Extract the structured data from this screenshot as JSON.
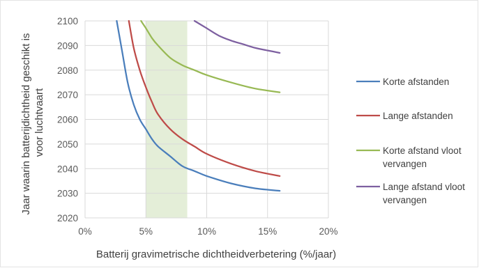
{
  "chart_data": {
    "type": "line",
    "xlabel": "Batterij gravimetrische dichtheidverbetering (%/jaar)",
    "ylabel_lines": [
      "Jaar waarin batterijdichtheid geschikt is",
      "voor luchtvaart"
    ],
    "xlim": [
      0,
      0.2
    ],
    "ylim": [
      2020,
      2100
    ],
    "x_ticks": [
      0,
      0.05,
      0.1,
      0.15,
      0.2
    ],
    "x_tick_labels": [
      "0%",
      "5%",
      "10%",
      "15%",
      "20%"
    ],
    "y_ticks": [
      2020,
      2030,
      2040,
      2050,
      2060,
      2070,
      2080,
      2090,
      2100
    ],
    "y_tick_labels": [
      "2020",
      "2030",
      "2040",
      "2050",
      "2060",
      "2070",
      "2080",
      "2090",
      "2100"
    ],
    "grid": true,
    "legend_position": "right",
    "highlight_band": {
      "x": [
        0.05,
        0.084
      ],
      "color": "#e4eed8"
    },
    "series": [
      {
        "name": "Korte afstanden",
        "color": "#4a7ebb",
        "x": [
          0.026,
          0.03,
          0.035,
          0.04,
          0.045,
          0.05,
          0.055,
          0.06,
          0.07,
          0.08,
          0.09,
          0.1,
          0.12,
          0.14,
          0.16
        ],
        "y": [
          2100,
          2089,
          2075,
          2066,
          2060,
          2056,
          2052,
          2049,
          2045,
          2041,
          2039,
          2037,
          2034,
          2032,
          2031
        ]
      },
      {
        "name": "Lange afstanden",
        "color": "#be4b48",
        "x": [
          0.036,
          0.04,
          0.045,
          0.05,
          0.055,
          0.06,
          0.07,
          0.08,
          0.09,
          0.1,
          0.12,
          0.14,
          0.16
        ],
        "y": [
          2100,
          2089,
          2080,
          2073,
          2067,
          2062,
          2056,
          2052,
          2049,
          2046,
          2042,
          2039,
          2037
        ]
      },
      {
        "name": "Korte afstand vloot vervangen",
        "color": "#98b954",
        "x": [
          0.046,
          0.05,
          0.055,
          0.06,
          0.07,
          0.08,
          0.09,
          0.1,
          0.12,
          0.14,
          0.16
        ],
        "y": [
          2100,
          2097,
          2093,
          2090,
          2085,
          2082,
          2080,
          2078,
          2075,
          2072.5,
          2071
        ]
      },
      {
        "name": "Lange afstand vloot vervangen",
        "color": "#7d5fa0",
        "x": [
          0.09,
          0.1,
          0.11,
          0.12,
          0.13,
          0.14,
          0.15,
          0.16
        ],
        "y": [
          2100,
          2097,
          2094,
          2092,
          2090.5,
          2089,
          2088,
          2087
        ]
      }
    ],
    "legend": [
      {
        "lines": [
          "Korte afstanden"
        ]
      },
      {
        "lines": [
          "Lange afstanden"
        ]
      },
      {
        "lines": [
          "Korte afstand vloot",
          "vervangen"
        ]
      },
      {
        "lines": [
          "Lange afstand vloot",
          "vervangen"
        ]
      }
    ]
  }
}
